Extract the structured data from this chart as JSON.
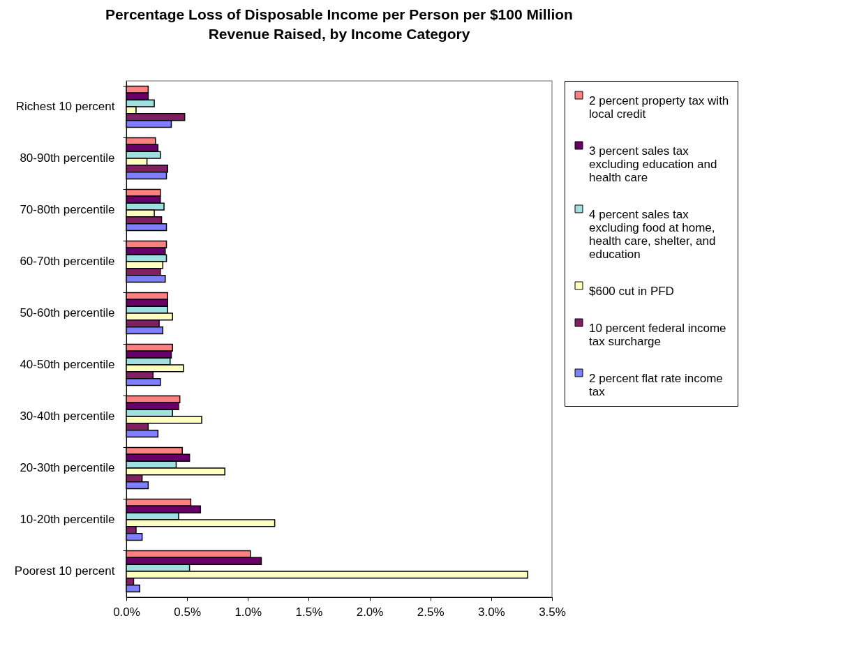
{
  "chart_data": {
    "type": "bar",
    "orientation": "horizontal",
    "title": "Percentage Loss of Disposable Income per Person per $100 Million Revenue Raised, by Income Category",
    "categories": [
      "Richest 10 percent",
      "80-90th percentile",
      "70-80th percentile",
      "60-70th percentile",
      "50-60th percentile",
      "40-50th percentile",
      "30-40th percentile",
      "20-30th percentile",
      "10-20th percentile",
      "Poorest 10 percent"
    ],
    "series": [
      {
        "name": "2 percent property tax with local credit",
        "color": "#ff8080",
        "values": [
          0.18,
          0.24,
          0.28,
          0.33,
          0.34,
          0.38,
          0.44,
          0.46,
          0.53,
          1.02
        ]
      },
      {
        "name": "3 percent sales tax excluding education and health care",
        "color": "#660066",
        "values": [
          0.18,
          0.26,
          0.28,
          0.32,
          0.34,
          0.37,
          0.43,
          0.52,
          0.61,
          1.11
        ]
      },
      {
        "name": "4 percent sales tax excluding food at home, health care, shelter, and education",
        "color": "#a0e0e0",
        "values": [
          0.23,
          0.28,
          0.31,
          0.33,
          0.34,
          0.36,
          0.38,
          0.41,
          0.43,
          0.52
        ]
      },
      {
        "name": "$600 cut in PFD",
        "color": "#ffffc0",
        "values": [
          0.08,
          0.17,
          0.23,
          0.3,
          0.38,
          0.47,
          0.62,
          0.81,
          1.22,
          3.3
        ]
      },
      {
        "name": "10 percent federal income tax surcharge",
        "color": "#802060",
        "values": [
          0.48,
          0.34,
          0.29,
          0.28,
          0.27,
          0.22,
          0.18,
          0.13,
          0.08,
          0.06
        ]
      },
      {
        "name": "2 percent flat rate income tax",
        "color": "#8080ff",
        "values": [
          0.37,
          0.33,
          0.33,
          0.32,
          0.3,
          0.28,
          0.26,
          0.18,
          0.13,
          0.11
        ]
      }
    ],
    "xlim": [
      0,
      3.5
    ],
    "xticks": [
      {
        "value": 0,
        "label": "0.0%"
      },
      {
        "value": 0.5,
        "label": "0.5%"
      },
      {
        "value": 1,
        "label": "1.0%"
      },
      {
        "value": 1.5,
        "label": "1.5%"
      },
      {
        "value": 2,
        "label": "2.0%"
      },
      {
        "value": 2.5,
        "label": "2.5%"
      },
      {
        "value": 3,
        "label": "3.0%"
      },
      {
        "value": 3.5,
        "label": "3.5%"
      }
    ],
    "grid": false,
    "legend": "right"
  }
}
